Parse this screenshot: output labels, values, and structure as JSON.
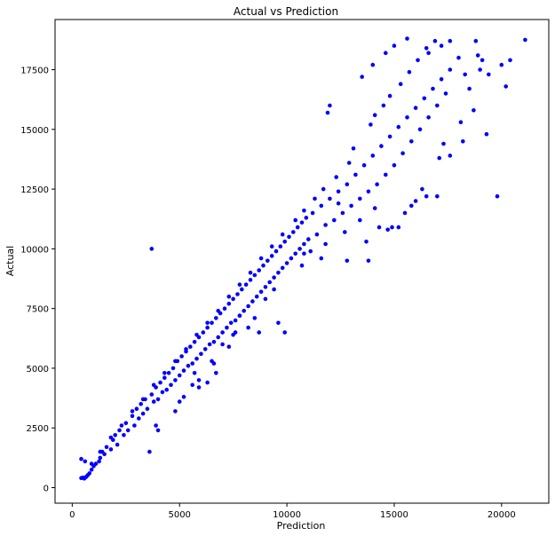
{
  "chart_data": {
    "type": "scatter",
    "title": "Actual vs Prediction",
    "xlabel": "Prediction",
    "ylabel": "Actual",
    "xlim": [
      -800,
      22200
    ],
    "ylim": [
      -650,
      19600
    ],
    "xticks": [
      0,
      5000,
      10000,
      15000,
      20000
    ],
    "yticks": [
      0,
      2500,
      5000,
      7500,
      10000,
      12500,
      15000,
      17500
    ],
    "grid": false,
    "legend": "none",
    "marker_color": "#0000ff",
    "series": [
      {
        "points": [
          [
            420,
            400
          ],
          [
            500,
            420
          ],
          [
            560,
            380
          ],
          [
            650,
            450
          ],
          [
            720,
            520
          ],
          [
            800,
            600
          ],
          [
            420,
            1200
          ],
          [
            600,
            1100
          ],
          [
            900,
            750
          ],
          [
            1000,
            900
          ],
          [
            1100,
            1000
          ],
          [
            1250,
            1100
          ],
          [
            1300,
            1250
          ],
          [
            1400,
            1500
          ],
          [
            1500,
            1400
          ],
          [
            1600,
            1700
          ],
          [
            1800,
            1600
          ],
          [
            1900,
            2000
          ],
          [
            2000,
            2200
          ],
          [
            2100,
            1800
          ],
          [
            2200,
            2400
          ],
          [
            2400,
            2200
          ],
          [
            2500,
            2700
          ],
          [
            2600,
            2400
          ],
          [
            2800,
            3000
          ],
          [
            2900,
            2600
          ],
          [
            3000,
            3300
          ],
          [
            3100,
            2900
          ],
          [
            3200,
            3500
          ],
          [
            3300,
            3100
          ],
          [
            3400,
            3700
          ],
          [
            3500,
            3300
          ],
          [
            3600,
            1500
          ],
          [
            3700,
            3900
          ],
          [
            3800,
            3600
          ],
          [
            3900,
            4200
          ],
          [
            4000,
            3700
          ],
          [
            4100,
            4400
          ],
          [
            4200,
            4000
          ],
          [
            4300,
            4600
          ],
          [
            4400,
            4100
          ],
          [
            4500,
            4800
          ],
          [
            4600,
            4300
          ],
          [
            4700,
            5000
          ],
          [
            4800,
            4500
          ],
          [
            4900,
            5300
          ],
          [
            5000,
            4700
          ],
          [
            5100,
            5500
          ],
          [
            5200,
            4900
          ],
          [
            5300,
            5700
          ],
          [
            5400,
            5100
          ],
          [
            5500,
            5900
          ],
          [
            5600,
            5200
          ],
          [
            5700,
            6100
          ],
          [
            5800,
            5400
          ],
          [
            5900,
            6300
          ],
          [
            6000,
            5600
          ],
          [
            6100,
            6500
          ],
          [
            6200,
            5800
          ],
          [
            6300,
            6700
          ],
          [
            6400,
            6000
          ],
          [
            6500,
            6900
          ],
          [
            6600,
            6100
          ],
          [
            6700,
            7100
          ],
          [
            6800,
            6300
          ],
          [
            6900,
            7300
          ],
          [
            7000,
            6500
          ],
          [
            7100,
            7500
          ],
          [
            7200,
            6700
          ],
          [
            7300,
            7700
          ],
          [
            7400,
            6900
          ],
          [
            7500,
            7900
          ],
          [
            7600,
            7000
          ],
          [
            7700,
            8100
          ],
          [
            7800,
            7200
          ],
          [
            7900,
            8300
          ],
          [
            8000,
            7400
          ],
          [
            8100,
            8500
          ],
          [
            8200,
            7600
          ],
          [
            8300,
            8700
          ],
          [
            8400,
            7800
          ],
          [
            8500,
            8900
          ],
          [
            8600,
            8000
          ],
          [
            8700,
            9100
          ],
          [
            8800,
            8200
          ],
          [
            8900,
            9300
          ],
          [
            9000,
            8400
          ],
          [
            9100,
            9500
          ],
          [
            9200,
            8600
          ],
          [
            9300,
            9700
          ],
          [
            9400,
            8800
          ],
          [
            9500,
            9900
          ],
          [
            9600,
            9000
          ],
          [
            9700,
            10100
          ],
          [
            9800,
            9200
          ],
          [
            9900,
            10300
          ],
          [
            10000,
            9400
          ],
          [
            10100,
            10500
          ],
          [
            10200,
            9600
          ],
          [
            10300,
            10700
          ],
          [
            10400,
            9800
          ],
          [
            10500,
            10900
          ],
          [
            10600,
            10000
          ],
          [
            10700,
            11100
          ],
          [
            10800,
            10200
          ],
          [
            10900,
            11300
          ],
          [
            11000,
            10400
          ],
          [
            11200,
            11500
          ],
          [
            11400,
            10600
          ],
          [
            11600,
            11800
          ],
          [
            11800,
            11000
          ],
          [
            12000,
            12100
          ],
          [
            12200,
            11200
          ],
          [
            12400,
            12400
          ],
          [
            12600,
            11500
          ],
          [
            12800,
            12700
          ],
          [
            13000,
            11800
          ],
          [
            13200,
            13100
          ],
          [
            13400,
            12100
          ],
          [
            13600,
            13500
          ],
          [
            13800,
            12400
          ],
          [
            14000,
            13900
          ],
          [
            14200,
            12700
          ],
          [
            14400,
            14300
          ],
          [
            14600,
            13100
          ],
          [
            14800,
            14700
          ],
          [
            15000,
            13500
          ],
          [
            15200,
            15100
          ],
          [
            15400,
            14000
          ],
          [
            15600,
            15500
          ],
          [
            15800,
            14500
          ],
          [
            16000,
            15900
          ],
          [
            16200,
            15000
          ],
          [
            16400,
            16300
          ],
          [
            16600,
            15500
          ],
          [
            16800,
            16700
          ],
          [
            17000,
            16000
          ],
          [
            17200,
            17100
          ],
          [
            17400,
            16500
          ],
          [
            17600,
            17500
          ],
          [
            18000,
            18000
          ],
          [
            18300,
            17300
          ],
          [
            18500,
            16700
          ],
          [
            19000,
            17500
          ],
          [
            19300,
            14800
          ],
          [
            19800,
            12200
          ],
          [
            20200,
            16800
          ],
          [
            20400,
            17900
          ],
          [
            21100,
            18750
          ],
          [
            16900,
            18700
          ],
          [
            16500,
            18400
          ],
          [
            15600,
            18800
          ],
          [
            15000,
            18500
          ],
          [
            14600,
            18200
          ],
          [
            14000,
            17700
          ],
          [
            13500,
            17200
          ],
          [
            3700,
            10000
          ],
          [
            12000,
            16000
          ],
          [
            11900,
            15700
          ],
          [
            14300,
            10900
          ],
          [
            14700,
            10800
          ],
          [
            13700,
            10300
          ],
          [
            13800,
            9500
          ],
          [
            12800,
            9500
          ],
          [
            11600,
            9600
          ],
          [
            10800,
            9800
          ],
          [
            11800,
            10200
          ],
          [
            9000,
            7900
          ],
          [
            9600,
            6900
          ],
          [
            9900,
            6500
          ],
          [
            8700,
            6500
          ],
          [
            8500,
            7100
          ],
          [
            7800,
            7200
          ],
          [
            7500,
            6400
          ],
          [
            7300,
            5900
          ],
          [
            6500,
            5300
          ],
          [
            6600,
            5200
          ],
          [
            6700,
            4800
          ],
          [
            6300,
            4400
          ],
          [
            5700,
            4800
          ],
          [
            5900,
            4500
          ],
          [
            5600,
            4300
          ],
          [
            5900,
            4200
          ],
          [
            5200,
            3800
          ],
          [
            5000,
            3600
          ],
          [
            4800,
            3200
          ],
          [
            3900,
            2600
          ],
          [
            4000,
            2400
          ],
          [
            17300,
            14400
          ],
          [
            17100,
            13800
          ],
          [
            17000,
            12200
          ],
          [
            17600,
            13900
          ],
          [
            18200,
            14500
          ],
          [
            16300,
            12500
          ],
          [
            16500,
            12200
          ],
          [
            15800,
            11800
          ],
          [
            15500,
            11500
          ],
          [
            16000,
            12000
          ],
          [
            15200,
            10900
          ],
          [
            14900,
            10900
          ],
          [
            14100,
            11700
          ],
          [
            13400,
            11200
          ],
          [
            12700,
            10700
          ],
          [
            12400,
            11900
          ],
          [
            11100,
            9900
          ],
          [
            10700,
            9300
          ],
          [
            9400,
            8300
          ],
          [
            8200,
            6700
          ],
          [
            7000,
            6000
          ],
          [
            7600,
            6500
          ],
          [
            13900,
            15200
          ],
          [
            14100,
            15600
          ],
          [
            14500,
            16000
          ],
          [
            14800,
            16400
          ],
          [
            15300,
            16900
          ],
          [
            15700,
            17400
          ],
          [
            16100,
            17900
          ],
          [
            16600,
            18200
          ],
          [
            17200,
            18500
          ],
          [
            17600,
            18700
          ],
          [
            18800,
            18700
          ],
          [
            18900,
            18100
          ],
          [
            19100,
            17900
          ],
          [
            18700,
            15800
          ],
          [
            18100,
            15300
          ],
          [
            20000,
            17700
          ],
          [
            19400,
            17300
          ],
          [
            13100,
            14200
          ],
          [
            12900,
            13600
          ],
          [
            12300,
            13000
          ],
          [
            11700,
            12500
          ],
          [
            11300,
            12100
          ],
          [
            10800,
            11600
          ],
          [
            10400,
            11200
          ],
          [
            9800,
            10600
          ],
          [
            9300,
            10100
          ],
          [
            8800,
            9600
          ],
          [
            8300,
            9000
          ],
          [
            7800,
            8500
          ],
          [
            7300,
            8000
          ],
          [
            6800,
            7400
          ],
          [
            6300,
            6900
          ],
          [
            5800,
            6400
          ],
          [
            5300,
            5800
          ],
          [
            4800,
            5300
          ],
          [
            4300,
            4800
          ],
          [
            3800,
            4300
          ],
          [
            3300,
            3700
          ],
          [
            2800,
            3200
          ],
          [
            2300,
            2600
          ],
          [
            1800,
            2100
          ],
          [
            1300,
            1500
          ],
          [
            900,
            1000
          ]
        ]
      }
    ]
  }
}
